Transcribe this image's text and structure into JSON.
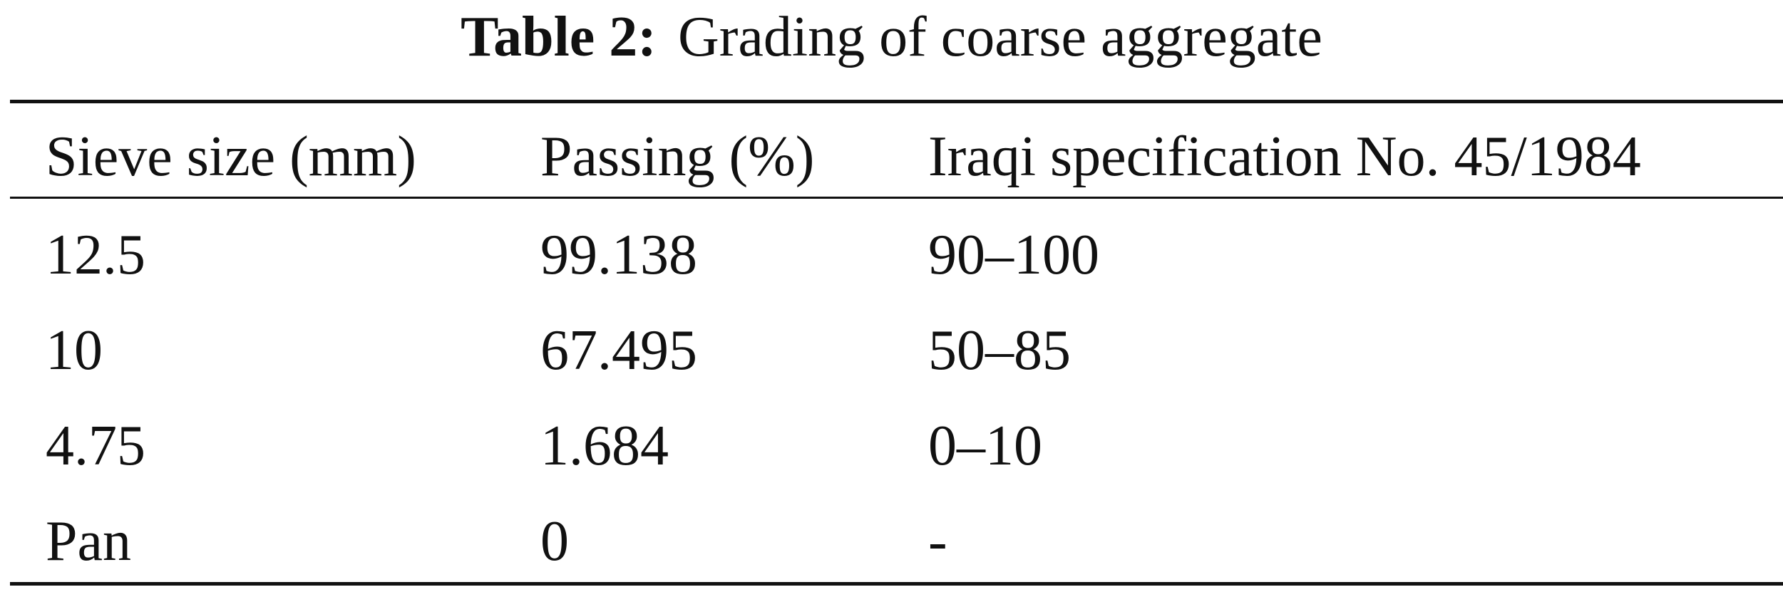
{
  "caption": {
    "label": "Table 2:",
    "text": "Grading of coarse aggregate"
  },
  "table": {
    "headers": [
      "Sieve size (mm)",
      "Passing (%)",
      "Iraqi specification No. 45/1984"
    ],
    "rows": [
      [
        "12.5",
        "99.138",
        "90–100"
      ],
      [
        "10",
        "67.495",
        "50–85"
      ],
      [
        "4.75",
        "1.684",
        "0–10"
      ],
      [
        "Pan",
        "0",
        "-"
      ]
    ]
  }
}
